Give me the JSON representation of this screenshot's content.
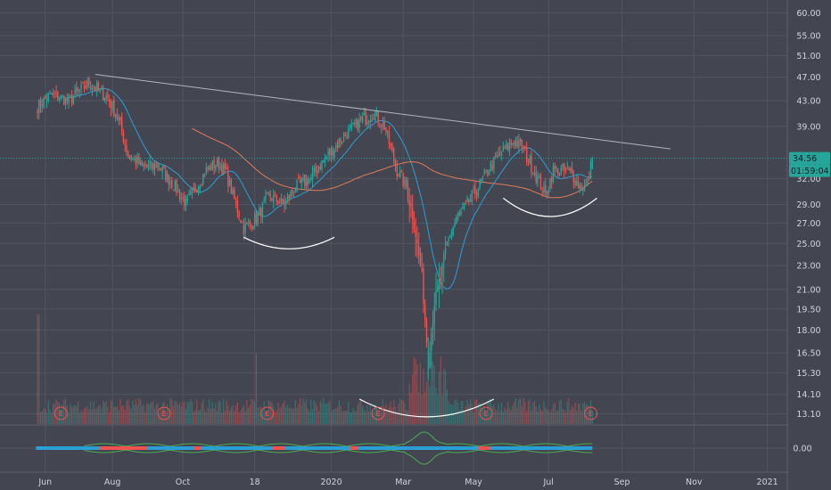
{
  "chart_data": {
    "type": "candlestick",
    "price_scale": "log",
    "y_ticks": [
      "60.00",
      "55.00",
      "51.00",
      "47.00",
      "43.00",
      "39.00",
      "32.00",
      "29.00",
      "27.00",
      "25.00",
      "23.00",
      "21.00",
      "19.50",
      "18.00",
      "16.50",
      "15.30",
      "14.10",
      "13.10"
    ],
    "y_tick_values": [
      60,
      55,
      51,
      47,
      43,
      39,
      32,
      29,
      27,
      25,
      23,
      21,
      19.5,
      18,
      16.5,
      15.3,
      14.1,
      13.1
    ],
    "ylim": [
      12.6,
      63
    ],
    "x_ticks": [
      "Jun",
      "Aug",
      "Oct",
      "18",
      "2020",
      "Mar",
      "May",
      "Jul",
      "Sep",
      "Nov",
      "2021"
    ],
    "x_tick_index": [
      5,
      48,
      93,
      139,
      188,
      234,
      279,
      327,
      374,
      420,
      467
    ],
    "date_range": [
      "2019-05-20",
      "2021-01-15"
    ],
    "last_price": "34.56",
    "countdown": "01:59:04",
    "last_price_value": 34.56,
    "current_price_value": 33.8,
    "volume_ylim": [
      0,
      60
    ],
    "oscillator_tick": "0.00",
    "earnings_marker": "E",
    "earnings_index": [
      15,
      81,
      147,
      218,
      287,
      354
    ],
    "anchors": [
      [
        0,
        42
      ],
      [
        8,
        44
      ],
      [
        20,
        43
      ],
      [
        33,
        46
      ],
      [
        45,
        43.5
      ],
      [
        52,
        40
      ],
      [
        58,
        35
      ],
      [
        67,
        33.5
      ],
      [
        78,
        33.5
      ],
      [
        88,
        31
      ],
      [
        95,
        29
      ],
      [
        100,
        30.5
      ],
      [
        108,
        33
      ],
      [
        115,
        34
      ],
      [
        120,
        33
      ],
      [
        126,
        29.5
      ],
      [
        132,
        26.5
      ],
      [
        140,
        27.5
      ],
      [
        148,
        30
      ],
      [
        158,
        29
      ],
      [
        165,
        31
      ],
      [
        175,
        32
      ],
      [
        182,
        34
      ],
      [
        190,
        36
      ],
      [
        198,
        38
      ],
      [
        208,
        40
      ],
      [
        215,
        41
      ],
      [
        222,
        39
      ],
      [
        230,
        33
      ],
      [
        236,
        31
      ],
      [
        241,
        27
      ],
      [
        246,
        22
      ],
      [
        250,
        16
      ],
      [
        254,
        20
      ],
      [
        258,
        22
      ],
      [
        262,
        25
      ],
      [
        268,
        27.5
      ],
      [
        275,
        29
      ],
      [
        282,
        31
      ],
      [
        290,
        33.5
      ],
      [
        298,
        35.5
      ],
      [
        305,
        37
      ],
      [
        310,
        36
      ],
      [
        315,
        34
      ],
      [
        320,
        32
      ],
      [
        325,
        30
      ],
      [
        330,
        33
      ],
      [
        336,
        33
      ],
      [
        342,
        32.5
      ],
      [
        347,
        31
      ],
      [
        352,
        31.5
      ],
      [
        355,
        34.5
      ]
    ],
    "series": [
      {
        "name": "price",
        "color_up": "#26a69a",
        "color_down": "#ef5350"
      },
      {
        "name": "",
        "color": "#2a9fd6"
      },
      {
        "name": "",
        "color": "#e07b5a"
      }
    ],
    "annotations": [
      {
        "kind": "trendline",
        "from": [
          37,
          47.5
        ],
        "to": [
          405,
          35.8
        ],
        "color": "#b2b5be"
      },
      {
        "kind": "arc",
        "from": [
          132,
          25.6
        ],
        "to": [
          190,
          25.6
        ],
        "low": 24.5,
        "color": "#ffffff"
      },
      {
        "kind": "arc",
        "from": [
          206,
          13.85
        ],
        "to": [
          292,
          13.85
        ],
        "low": 12.95,
        "color": "#ffffff"
      },
      {
        "kind": "arc",
        "from": [
          298,
          29.7
        ],
        "to": [
          358,
          29.7
        ],
        "low": 27.7,
        "color": "#ffffff"
      }
    ],
    "colors": {
      "background": "#434651",
      "grid": "#515561",
      "up": "#26a69a",
      "down": "#ef5350",
      "price_line": "#26a69a",
      "tag": "#26a69a"
    }
  }
}
